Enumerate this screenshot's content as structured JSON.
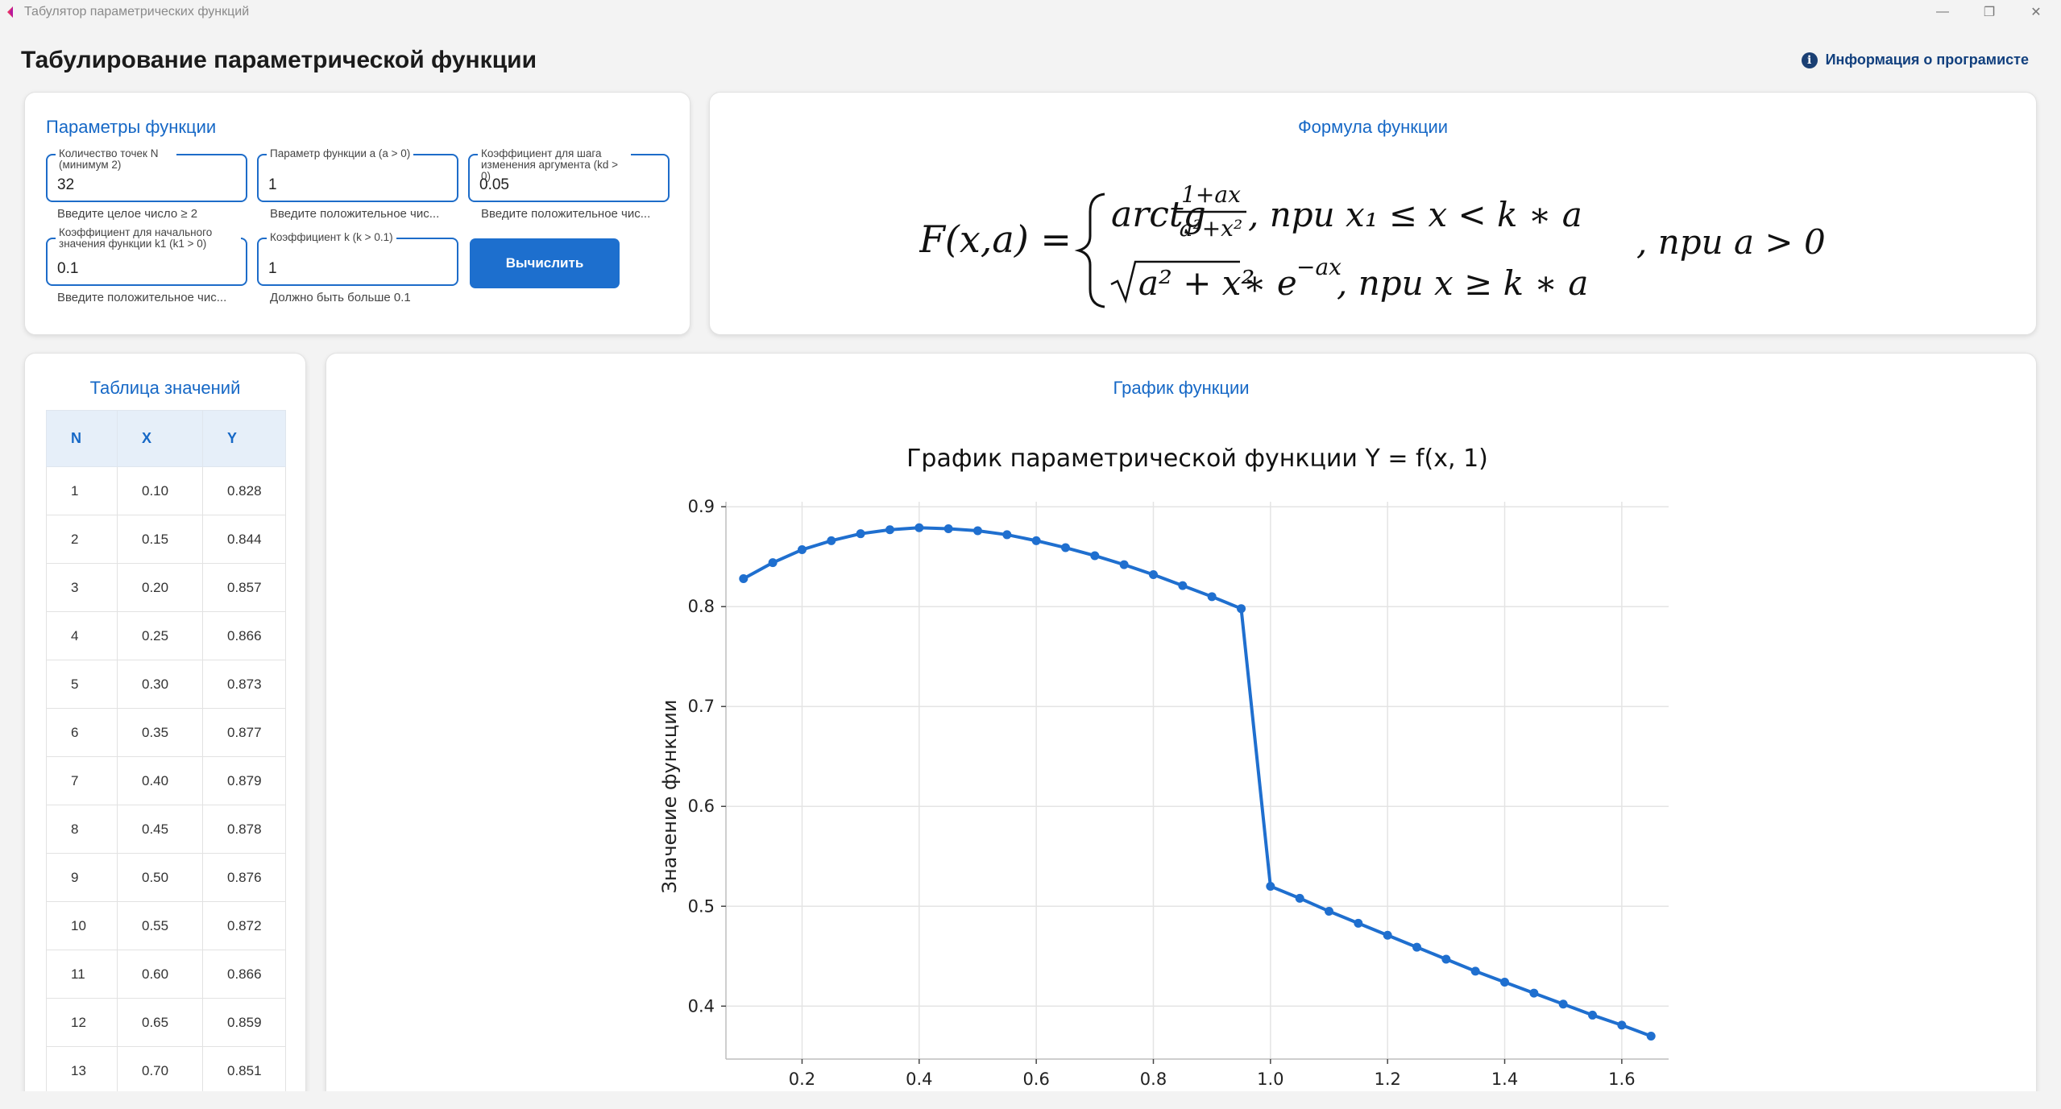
{
  "window": {
    "title": "Табулятор параметрических функций",
    "minimize_glyph": "—",
    "maximize_glyph": "❐",
    "close_glyph": "✕"
  },
  "header": {
    "title": "Табулирование параметрической функции",
    "info_label": "Информация о програмисте",
    "info_icon": "info-icon"
  },
  "params": {
    "title": "Параметры функции",
    "fields": [
      {
        "label": "Количество точек N (минимум 2)",
        "value": "32",
        "hint": "Введите целое число ≥ 2"
      },
      {
        "label": "Параметр функции a (a > 0)",
        "value": "1",
        "hint": "Введите положительное чис..."
      },
      {
        "label": "Коэффициент для шага изменения аргумента (kd > 0)",
        "value": "0.05",
        "hint": "Введите положительное чис..."
      },
      {
        "label": "Коэффициент для начального значения функции k1 (k1 > 0)",
        "value": "0.1",
        "hint": "Введите положительное чис..."
      },
      {
        "label": "Коэффициент k (k > 0.1)",
        "value": "1",
        "hint": "Должно быть больше 0.1"
      }
    ],
    "calc_button": "Вычислить"
  },
  "formula": {
    "title": "Формула функции",
    "lhs": "F(x,a) =",
    "case1_func": "arctg",
    "case1_num": "1+ax",
    "case1_den": "a²+x²",
    "case1_cond": ", при x₁ ≤ x  < k ∗ a",
    "case2_expr": "a² + x²",
    "case2_exp": "∗ e",
    "case2_power": "−ax",
    "case2_cond": ", при x ≥ k ∗ a",
    "outer_cond": ", при a  > 0"
  },
  "table": {
    "title": "Таблица значений",
    "headers": [
      "N",
      "X",
      "Y"
    ],
    "rows": [
      [
        "1",
        "0.10",
        "0.828"
      ],
      [
        "2",
        "0.15",
        "0.844"
      ],
      [
        "3",
        "0.20",
        "0.857"
      ],
      [
        "4",
        "0.25",
        "0.866"
      ],
      [
        "5",
        "0.30",
        "0.873"
      ],
      [
        "6",
        "0.35",
        "0.877"
      ],
      [
        "7",
        "0.40",
        "0.879"
      ],
      [
        "8",
        "0.45",
        "0.878"
      ],
      [
        "9",
        "0.50",
        "0.876"
      ],
      [
        "10",
        "0.55",
        "0.872"
      ],
      [
        "11",
        "0.60",
        "0.866"
      ],
      [
        "12",
        "0.65",
        "0.859"
      ],
      [
        "13",
        "0.70",
        "0.851"
      ]
    ]
  },
  "chart_section": {
    "title": "График функции"
  },
  "chart_data": {
    "type": "line",
    "title": "График параметрической функции Y = f(x, 1)",
    "xlabel": "",
    "ylabel": "Значение функции",
    "xlim": [
      0.07,
      1.68
    ],
    "ylim": [
      0.347,
      0.905
    ],
    "xticks": [
      0.2,
      0.4,
      0.6,
      0.8,
      1.0,
      1.2,
      1.4,
      1.6
    ],
    "yticks": [
      0.4,
      0.5,
      0.6,
      0.7,
      0.8,
      0.9
    ],
    "grid": true,
    "color": "#1f6fcf",
    "x": [
      0.1,
      0.15,
      0.2,
      0.25,
      0.3,
      0.35,
      0.4,
      0.45,
      0.5,
      0.55,
      0.6,
      0.65,
      0.7,
      0.75,
      0.8,
      0.85,
      0.9,
      0.95,
      1.0,
      1.05,
      1.1,
      1.15,
      1.2,
      1.25,
      1.3,
      1.35,
      1.4,
      1.45,
      1.5,
      1.55,
      1.6,
      1.65
    ],
    "y": [
      0.828,
      0.844,
      0.857,
      0.866,
      0.873,
      0.877,
      0.879,
      0.878,
      0.876,
      0.872,
      0.866,
      0.859,
      0.851,
      0.842,
      0.832,
      0.821,
      0.81,
      0.798,
      0.52,
      0.508,
      0.495,
      0.483,
      0.471,
      0.459,
      0.447,
      0.435,
      0.424,
      0.413,
      0.402,
      0.391,
      0.381,
      0.37
    ]
  }
}
